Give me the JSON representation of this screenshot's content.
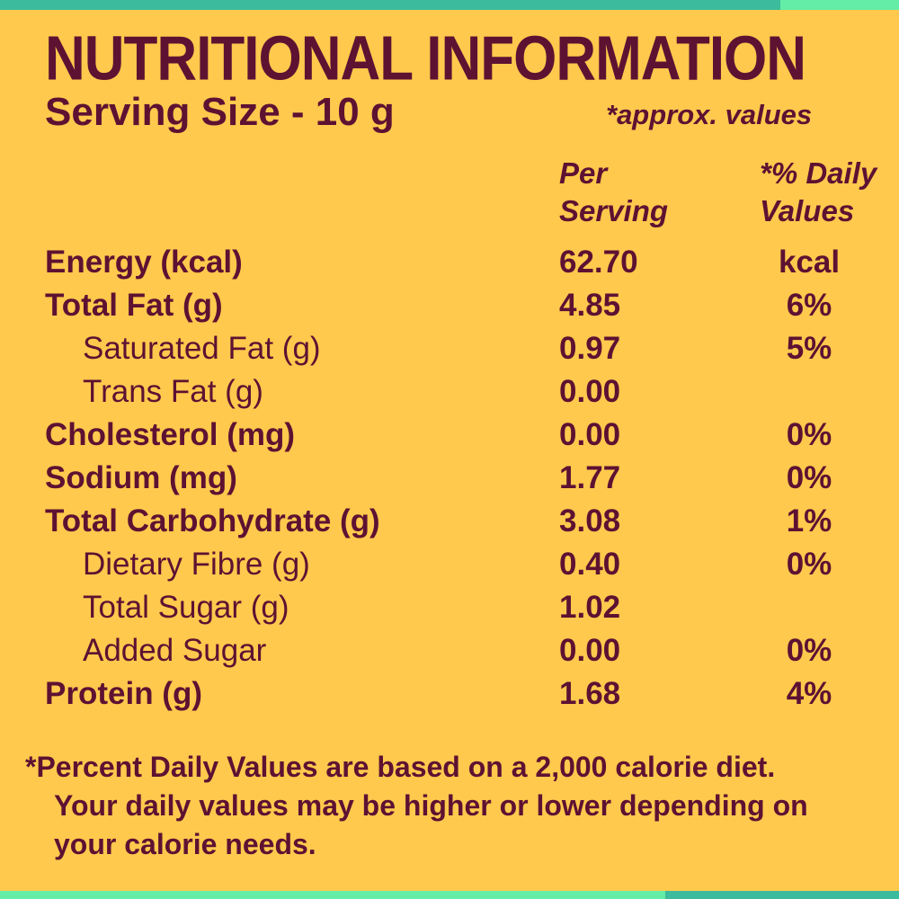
{
  "colors": {
    "background": "#FFC94D",
    "text": "#5D1232",
    "strip_teal": "#3CBC9C",
    "strip_mint": "#64EDA6"
  },
  "header": {
    "title": "NUTRITIONAL INFORMATION",
    "serving_size": "Serving Size - 10 g",
    "approx_note": "*approx. values"
  },
  "table": {
    "columns": {
      "per_serving": "Per Serving",
      "daily_values": "*% Daily Values"
    },
    "rows": [
      {
        "label": "Energy (kcal)",
        "per_serving": "62.70",
        "daily_value": "kcal",
        "indent": false
      },
      {
        "label": "Total Fat (g)",
        "per_serving": "4.85",
        "daily_value": "6%",
        "indent": false
      },
      {
        "label": "Saturated Fat (g)",
        "per_serving": "0.97",
        "daily_value": "5%",
        "indent": true
      },
      {
        "label": "Trans Fat (g)",
        "per_serving": "0.00",
        "daily_value": "",
        "indent": true
      },
      {
        "label": "Cholesterol (mg)",
        "per_serving": "0.00",
        "daily_value": "0%",
        "indent": false
      },
      {
        "label": "Sodium (mg)",
        "per_serving": "1.77",
        "daily_value": "0%",
        "indent": false
      },
      {
        "label": "Total Carbohydrate (g)",
        "per_serving": "3.08",
        "daily_value": "1%",
        "indent": false
      },
      {
        "label": "Dietary Fibre (g)",
        "per_serving": "0.40",
        "daily_value": "0%",
        "indent": true
      },
      {
        "label": "Total Sugar (g)",
        "per_serving": "1.02",
        "daily_value": "",
        "indent": true
      },
      {
        "label": "Added Sugar",
        "per_serving": "0.00",
        "daily_value": "0%",
        "indent": true
      },
      {
        "label": "Protein (g)",
        "per_serving": "1.68",
        "daily_value": "4%",
        "indent": false
      }
    ]
  },
  "footnote": {
    "lines": [
      "*Percent Daily Values are based on a 2,000 calorie diet.",
      "Your daily values may be higher or lower depending on",
      "your calorie needs."
    ]
  }
}
